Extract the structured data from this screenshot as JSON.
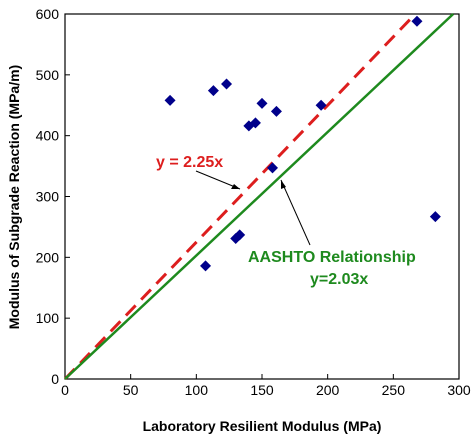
{
  "chart_data": {
    "type": "scatter",
    "xlabel": "Laboratory Resilient Modulus  (MPa)",
    "ylabel": "Modulus of Subgrade Reaction  (MPa/m)",
    "xlim": [
      0,
      300
    ],
    "ylim": [
      0,
      600
    ],
    "x_ticks": [
      "0",
      "50",
      "100",
      "150",
      "200",
      "250",
      "300"
    ],
    "y_ticks": [
      "0",
      "100",
      "200",
      "300",
      "400",
      "500",
      "600"
    ],
    "grid": false,
    "colors": {
      "points": "#00008B",
      "fit_line": "#DD1E1E",
      "aashto_line": "#1E8A1E"
    },
    "points": [
      {
        "x": 80,
        "y": 458
      },
      {
        "x": 107,
        "y": 186
      },
      {
        "x": 113,
        "y": 474
      },
      {
        "x": 123,
        "y": 485
      },
      {
        "x": 130,
        "y": 231
      },
      {
        "x": 133,
        "y": 237
      },
      {
        "x": 140,
        "y": 416
      },
      {
        "x": 145,
        "y": 421
      },
      {
        "x": 150,
        "y": 453
      },
      {
        "x": 158,
        "y": 347
      },
      {
        "x": 161,
        "y": 440
      },
      {
        "x": 195,
        "y": 450
      },
      {
        "x": 268,
        "y": 588
      },
      {
        "x": 282,
        "y": 267
      }
    ],
    "lines": [
      {
        "name": "y = 2.25x",
        "slope": 2.25,
        "style": "dashed",
        "color": "#DD1E1E"
      },
      {
        "name": "AASHTO Relationship y=2.03x",
        "slope": 2.03,
        "style": "solid",
        "color": "#1E8A1E"
      }
    ],
    "annotations": {
      "fit": "y = 2.25x",
      "aashto_line1": "AASHTO Relationship",
      "aashto_line2": "y=2.03x"
    }
  }
}
